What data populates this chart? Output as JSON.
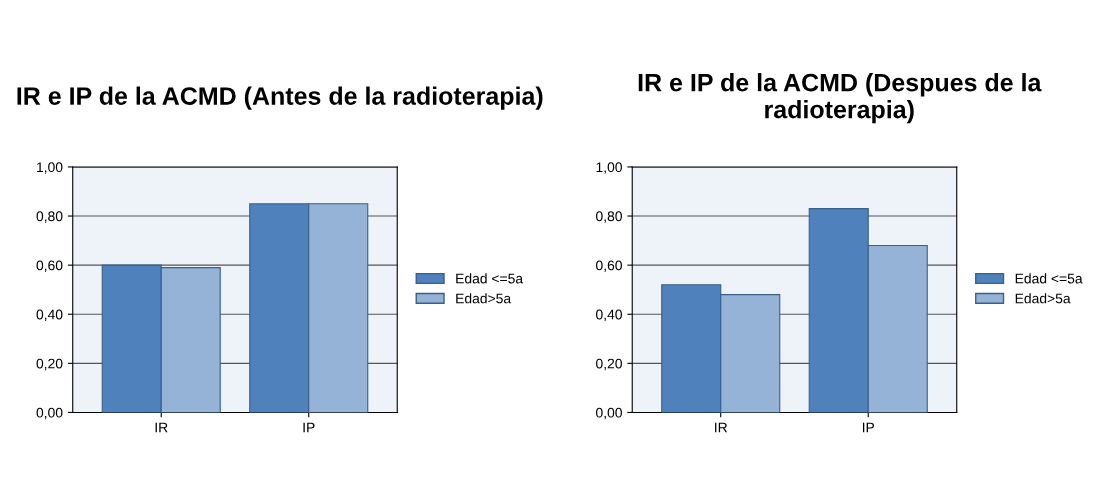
{
  "chart_data": [
    {
      "type": "bar",
      "title": "IR e IP de la ACMD (Antes de la radioterapia)",
      "categories": [
        "IR",
        "IP"
      ],
      "series": [
        {
          "name": "Edad <=5a",
          "color": "#4f81bd",
          "values": [
            0.6,
            0.85
          ]
        },
        {
          "name": "Edad>5a",
          "color": "#95b3d7",
          "values": [
            0.59,
            0.85
          ]
        }
      ],
      "ylim": [
        0,
        1
      ],
      "yticks": [
        {
          "value": 0,
          "label": "0,00"
        },
        {
          "value": 0.2,
          "label": "0,20"
        },
        {
          "value": 0.4,
          "label": "0,40"
        },
        {
          "value": 0.6,
          "label": "0,60"
        },
        {
          "value": 0.8,
          "label": "0,80"
        },
        {
          "value": 1,
          "label": "1,00"
        }
      ],
      "grid": "y",
      "legend": "right"
    },
    {
      "type": "bar",
      "title": "IR e IP de la ACMD (Despues de la radioterapia)",
      "categories": [
        "IR",
        "IP"
      ],
      "series": [
        {
          "name": "Edad <=5a",
          "color": "#4f81bd",
          "values": [
            0.52,
            0.83
          ]
        },
        {
          "name": "Edad>5a",
          "color": "#95b3d7",
          "values": [
            0.48,
            0.68
          ]
        }
      ],
      "ylim": [
        0,
        1
      ],
      "yticks": [
        {
          "value": 0,
          "label": "0,00"
        },
        {
          "value": 0.2,
          "label": "0,20"
        },
        {
          "value": 0.4,
          "label": "0,40"
        },
        {
          "value": 0.6,
          "label": "0,60"
        },
        {
          "value": 0.8,
          "label": "0,80"
        },
        {
          "value": 1,
          "label": "1,00"
        }
      ],
      "grid": "y",
      "legend": "right"
    }
  ]
}
